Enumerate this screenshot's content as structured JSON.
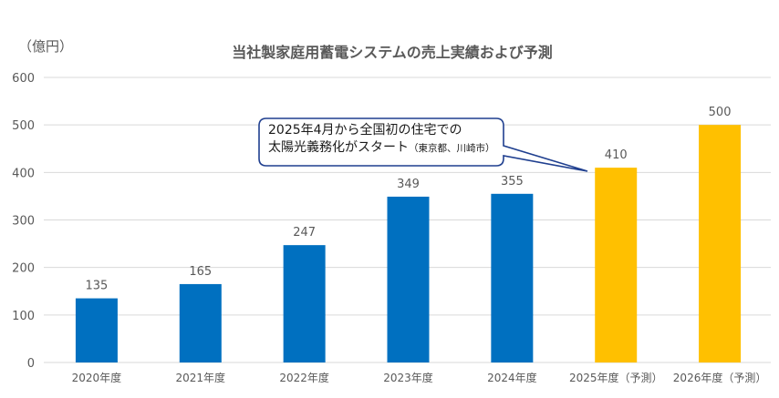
{
  "chart_data": {
    "type": "bar",
    "title": "当社製家庭用蓄電システムの売上実績および予測",
    "ylabel": "（億円）",
    "xlabel": "",
    "ylim": [
      0,
      600
    ],
    "yticks": [
      0,
      100,
      200,
      300,
      400,
      500,
      600
    ],
    "grid": true,
    "legend": null,
    "categories": [
      "2020年度",
      "2021年度",
      "2022年度",
      "2023年度",
      "2024年度",
      "2025年度（予測）",
      "2026年度（予測）"
    ],
    "values": [
      135,
      165,
      247,
      349,
      355,
      410,
      500
    ],
    "bar_colors": [
      "#0070C0",
      "#0070C0",
      "#0070C0",
      "#0070C0",
      "#0070C0",
      "#FFC000",
      "#FFC000"
    ],
    "data_labels": [
      "135",
      "165",
      "247",
      "349",
      "355",
      "410",
      "500"
    ],
    "annotations": [
      {
        "text_line1": "2025年4月から全国初の住宅での",
        "text_line2_main": "太陽光義務化がスタート",
        "text_line2_sub": "（東京都、川崎市）",
        "points_to": "2025年度（予測）",
        "border_color": "#1F3F8F"
      }
    ]
  },
  "colors": {
    "actual": "#0070C0",
    "forecast": "#FFC000",
    "grid": "#D9D9D9",
    "text": "#595959",
    "callout_border": "#1F3F8F"
  }
}
